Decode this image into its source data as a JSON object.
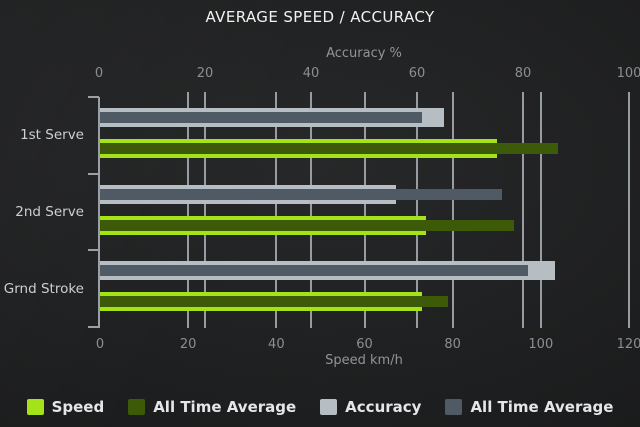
{
  "title": "AVERAGE SPEED / ACCURACY",
  "chart_data": {
    "type": "bar",
    "orientation": "horizontal",
    "title": "AVERAGE SPEED / ACCURACY",
    "categories": [
      "1st Serve",
      "2nd Serve",
      "Grnd Stroke"
    ],
    "axes": {
      "top": {
        "label": "Accuracy %",
        "ticks": [
          0,
          20,
          40,
          60,
          80,
          100
        ],
        "range": [
          0,
          100
        ]
      },
      "bottom": {
        "label": "Speed km/h",
        "ticks": [
          0,
          20,
          40,
          60,
          80,
          100,
          120
        ],
        "range": [
          0,
          120
        ]
      }
    },
    "series": [
      {
        "name": "Speed",
        "axis": "bottom",
        "role": "outer",
        "color": "#a4e318",
        "values": [
          90,
          74,
          73
        ]
      },
      {
        "name": "All Time Average",
        "axis": "bottom",
        "role": "inner",
        "color": "#3d5a08",
        "values": [
          104,
          94,
          79
        ]
      },
      {
        "name": "Accuracy",
        "axis": "top",
        "role": "outer",
        "color": "#b6bdc3",
        "values": [
          65,
          56,
          86
        ]
      },
      {
        "name": "All Time Average",
        "axis": "top",
        "role": "inner",
        "color": "#4f5a64",
        "values": [
          61,
          76,
          81
        ]
      }
    ],
    "legend_position": "bottom",
    "grid": true,
    "colors": {
      "background_center": "#272829",
      "background_edge": "#151616",
      "gridline": "#969ca1",
      "title_text": "#f1f3f3",
      "axis_text": "#8f9599",
      "tick_text": "#8a8f93",
      "category_text": "#cbd0d3",
      "legend_text": "#e4e7e9"
    }
  }
}
